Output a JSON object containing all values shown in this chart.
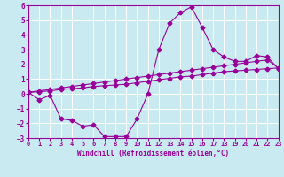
{
  "xlabel": "Windchill (Refroidissement éolien,°C)",
  "xlim": [
    0,
    23
  ],
  "ylim": [
    -3,
    6
  ],
  "yticks": [
    -3,
    -2,
    -1,
    0,
    1,
    2,
    3,
    4,
    5,
    6
  ],
  "xticks": [
    0,
    1,
    2,
    3,
    4,
    5,
    6,
    7,
    8,
    9,
    10,
    11,
    12,
    13,
    14,
    15,
    16,
    17,
    18,
    19,
    20,
    21,
    22,
    23
  ],
  "background_color": "#c8eaf0",
  "grid_color": "#ffffff",
  "line_color": "#990099",
  "line1_x": [
    0,
    1,
    2,
    3,
    4,
    5,
    6,
    7,
    8,
    9,
    10,
    11,
    12,
    13,
    14,
    15,
    16,
    17,
    18,
    19,
    20,
    21,
    22,
    23
  ],
  "line1_y": [
    0.1,
    -0.4,
    -0.1,
    -1.7,
    -1.8,
    -2.2,
    -2.1,
    -2.9,
    -2.9,
    -2.9,
    -1.7,
    0.0,
    3.0,
    4.8,
    5.5,
    5.9,
    4.5,
    3.0,
    2.5,
    2.2,
    2.2,
    2.6,
    2.5,
    1.7
  ],
  "line2_x": [
    0,
    1,
    2,
    3,
    4,
    5,
    6,
    7,
    8,
    9,
    10,
    11,
    12,
    13,
    14,
    15,
    16,
    17,
    18,
    19,
    20,
    21,
    22,
    23
  ],
  "line2_y": [
    0.1,
    0.15,
    0.2,
    0.3,
    0.35,
    0.4,
    0.5,
    0.55,
    0.6,
    0.65,
    0.75,
    0.85,
    0.95,
    1.05,
    1.15,
    1.2,
    1.3,
    1.4,
    1.5,
    1.55,
    1.6,
    1.65,
    1.7,
    1.75
  ],
  "line3_x": [
    0,
    1,
    2,
    3,
    4,
    5,
    6,
    7,
    8,
    9,
    10,
    11,
    12,
    13,
    14,
    15,
    16,
    17,
    18,
    19,
    20,
    21,
    22,
    23
  ],
  "line3_y": [
    0.1,
    0.2,
    0.3,
    0.4,
    0.5,
    0.6,
    0.7,
    0.8,
    0.9,
    1.0,
    1.1,
    1.2,
    1.3,
    1.4,
    1.5,
    1.6,
    1.7,
    1.8,
    1.9,
    2.0,
    2.1,
    2.2,
    2.3,
    1.75
  ]
}
